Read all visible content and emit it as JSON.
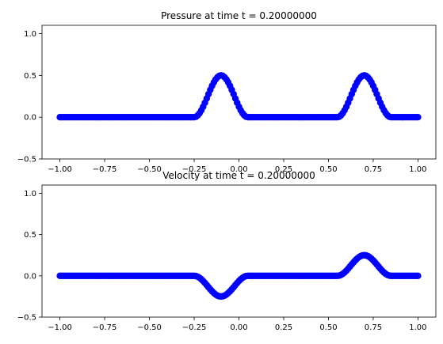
{
  "chart_data": [
    {
      "type": "scatter",
      "title": "Pressure at time t =      0.20000000",
      "xlim": [
        -1.1,
        1.1
      ],
      "ylim": [
        -0.5,
        1.1
      ],
      "xticks": [
        -1.0,
        -0.75,
        -0.5,
        -0.25,
        0.0,
        0.25,
        0.5,
        0.75,
        1.0
      ],
      "xtick_labels": [
        "−1.00",
        "−0.75",
        "−0.50",
        "−0.25",
        "0.00",
        "0.25",
        "0.50",
        "0.75",
        "1.00"
      ],
      "yticks": [
        -0.5,
        0.0,
        0.5,
        1.0
      ],
      "ytick_labels": [
        "−0.5",
        "0.0",
        "0.5",
        "1.0"
      ],
      "series": [
        {
          "color": "#0000ff",
          "marker": "circle",
          "x_range": [
            -1.0,
            1.0
          ],
          "n_points": 201,
          "pulses": [
            {
              "center": -0.1,
              "amplitude": 0.5,
              "half_width": 0.15,
              "shape": "cos2"
            },
            {
              "center": 0.7,
              "amplitude": 0.5,
              "half_width": 0.15,
              "shape": "cos2"
            }
          ]
        }
      ]
    },
    {
      "type": "scatter",
      "title": "Velocity at time t =      0.20000000",
      "xlim": [
        -1.1,
        1.1
      ],
      "ylim": [
        -0.5,
        1.1
      ],
      "xticks": [
        -1.0,
        -0.75,
        -0.5,
        -0.25,
        0.0,
        0.25,
        0.5,
        0.75,
        1.0
      ],
      "xtick_labels": [
        "−1.00",
        "−0.75",
        "−0.50",
        "−0.25",
        "0.00",
        "0.25",
        "0.50",
        "0.75",
        "1.00"
      ],
      "yticks": [
        -0.5,
        0.0,
        0.5,
        1.0
      ],
      "ytick_labels": [
        "−0.5",
        "0.0",
        "0.5",
        "1.0"
      ],
      "series": [
        {
          "color": "#0000ff",
          "marker": "circle",
          "x_range": [
            -1.0,
            1.0
          ],
          "n_points": 201,
          "pulses": [
            {
              "center": -0.1,
              "amplitude": -0.25,
              "half_width": 0.15,
              "shape": "cos2"
            },
            {
              "center": 0.7,
              "amplitude": 0.25,
              "half_width": 0.15,
              "shape": "cos2"
            }
          ]
        }
      ]
    }
  ]
}
